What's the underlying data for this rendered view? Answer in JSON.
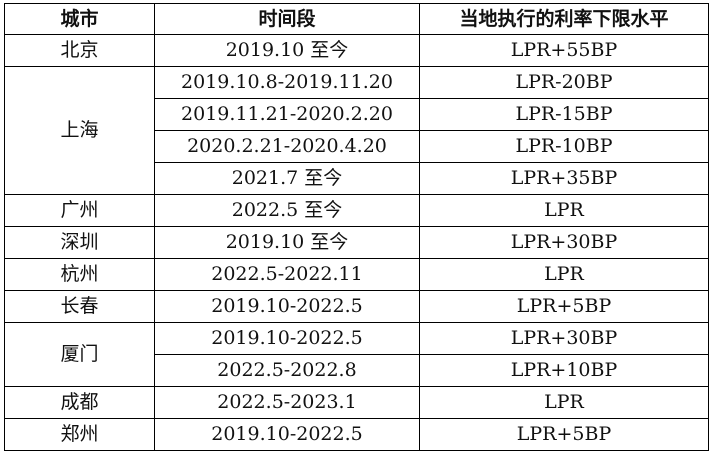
{
  "table": {
    "headers": [
      "城市",
      "时间段",
      "当地执行的利率下限水平"
    ],
    "groups": [
      {
        "city": "北京",
        "rows": [
          {
            "period": "2019.10 至今",
            "rate": "LPR+55BP"
          }
        ]
      },
      {
        "city": "上海",
        "rows": [
          {
            "period": "2019.10.8-2019.11.20",
            "rate": "LPR-20BP"
          },
          {
            "period": "2019.11.21-2020.2.20",
            "rate": "LPR-15BP"
          },
          {
            "period": "2020.2.21-2020.4.20",
            "rate": "LPR-10BP"
          },
          {
            "period": "2021.7 至今",
            "rate": "LPR+35BP"
          }
        ]
      },
      {
        "city": "广州",
        "rows": [
          {
            "period": "2022.5 至今",
            "rate": "LPR"
          }
        ]
      },
      {
        "city": "深圳",
        "rows": [
          {
            "period": "2019.10 至今",
            "rate": "LPR+30BP"
          }
        ]
      },
      {
        "city": "杭州",
        "rows": [
          {
            "period": "2022.5-2022.11",
            "rate": "LPR"
          }
        ]
      },
      {
        "city": "长春",
        "rows": [
          {
            "period": "2019.10-2022.5",
            "rate": "LPR+5BP"
          }
        ]
      },
      {
        "city": "厦门",
        "rows": [
          {
            "period": "2019.10-2022.5",
            "rate": "LPR+30BP"
          },
          {
            "period": "2022.5-2022.8",
            "rate": "LPR+10BP"
          }
        ]
      },
      {
        "city": "成都",
        "rows": [
          {
            "period": "2022.5-2023.1",
            "rate": "LPR"
          }
        ]
      },
      {
        "city": "郑州",
        "rows": [
          {
            "period": "2019.10-2022.5",
            "rate": "LPR+5BP"
          }
        ]
      }
    ]
  }
}
